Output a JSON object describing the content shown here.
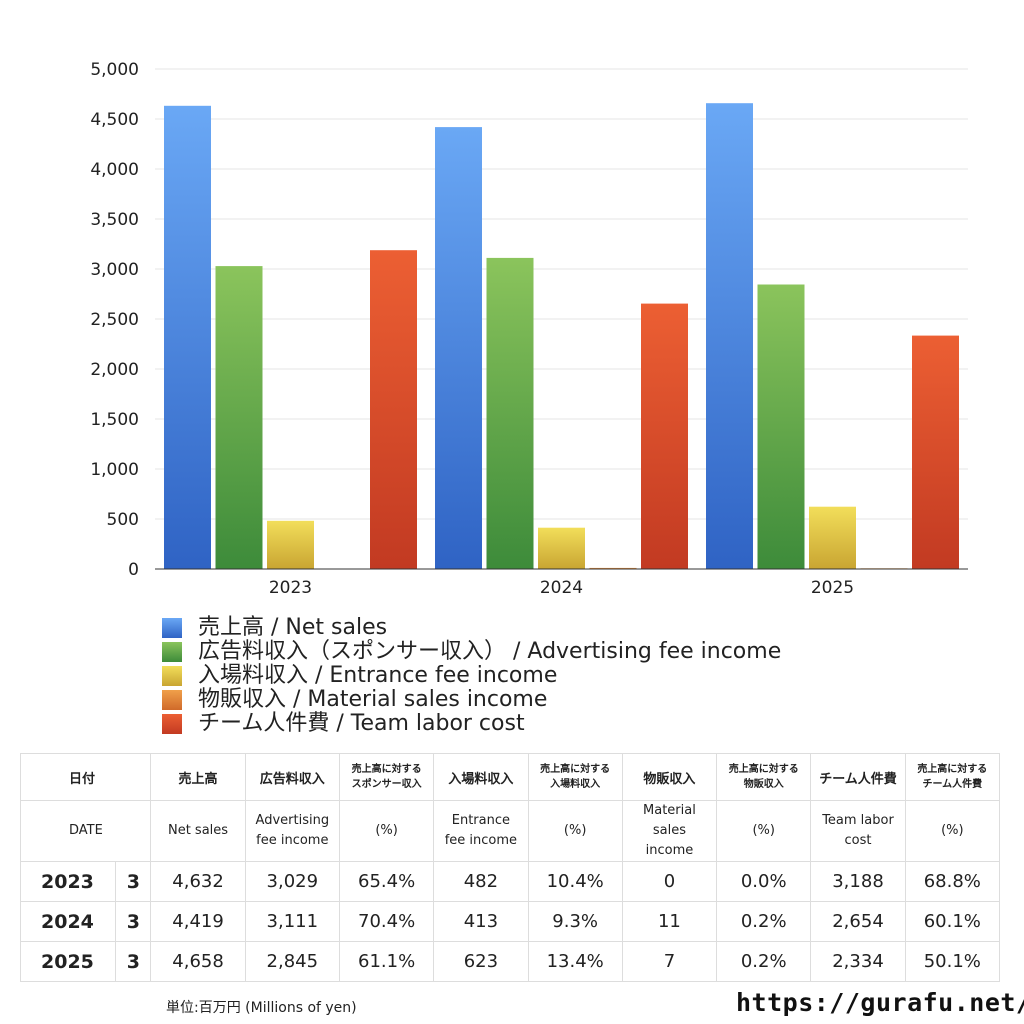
{
  "chart_data": {
    "type": "bar",
    "categories": [
      "2023",
      "2024",
      "2025"
    ],
    "ylim": [
      0,
      5000
    ],
    "yticks": [
      0,
      500,
      1000,
      1500,
      2000,
      2500,
      3000,
      3500,
      4000,
      4500,
      5000
    ],
    "ytick_labels": [
      "0",
      "500",
      "1,000",
      "1,500",
      "2,000",
      "2,500",
      "3,000",
      "3,500",
      "4,000",
      "4,500",
      "5,000"
    ],
    "grid": true,
    "legend_position": "bottom-left",
    "series": [
      {
        "name": "売上高 / Net sales",
        "values": [
          4632,
          4419,
          4658
        ],
        "color_top": "#6aa8f5",
        "color_bottom": "#2f63c4"
      },
      {
        "name": "広告料収入（スポンサー収入） / Advertising fee income",
        "values": [
          3029,
          3111,
          2845
        ],
        "color_top": "#8bc45c",
        "color_bottom": "#3d8b3a"
      },
      {
        "name": "入場料収入 / Entrance fee income",
        "values": [
          482,
          413,
          623
        ],
        "color_top": "#f2de5a",
        "color_bottom": "#c9a532"
      },
      {
        "name": "物販収入 / Material sales income",
        "values": [
          0,
          11,
          7
        ],
        "color_top": "#f0a04a",
        "color_bottom": "#d06a2a"
      },
      {
        "name": "チーム人件費 / Team labor cost",
        "values": [
          3188,
          2654,
          2334
        ],
        "color_top": "#ec5f33",
        "color_bottom": "#c23a22"
      }
    ]
  },
  "table": {
    "header_jp": {
      "date": "日付",
      "net_sales": "売上高",
      "adv": "広告料収入",
      "adv_ratio": [
        "売上高に対する",
        "スポンサー収入"
      ],
      "entrance": "入場料収入",
      "entrance_ratio": [
        "売上高に対する",
        "入場料収入"
      ],
      "material": "物販収入",
      "material_ratio": [
        "売上高に対する",
        "物販収入"
      ],
      "labor": "チーム人件費",
      "labor_ratio": [
        "売上高に対する",
        "チーム人件費"
      ]
    },
    "header_en": {
      "date": "DATE",
      "net_sales": "Net sales",
      "adv": [
        "Advertising",
        "fee income"
      ],
      "pct": "(%)",
      "entrance": [
        "Entrance",
        "fee income"
      ],
      "material": [
        "Material",
        "sales",
        "income"
      ],
      "labor": [
        "Team labor",
        "cost"
      ]
    },
    "rows": [
      {
        "year": "2023",
        "month": "3",
        "net_sales": "4,632",
        "adv": "3,029",
        "adv_pct": "65.4%",
        "entrance": "482",
        "entrance_pct": "10.4%",
        "material": "0",
        "material_pct": "0.0%",
        "labor": "3,188",
        "labor_pct": "68.8%"
      },
      {
        "year": "2024",
        "month": "3",
        "net_sales": "4,419",
        "adv": "3,111",
        "adv_pct": "70.4%",
        "entrance": "413",
        "entrance_pct": "9.3%",
        "material": "11",
        "material_pct": "0.2%",
        "labor": "2,654",
        "labor_pct": "60.1%"
      },
      {
        "year": "2025",
        "month": "3",
        "net_sales": "4,658",
        "adv": "2,845",
        "adv_pct": "61.1%",
        "entrance": "623",
        "entrance_pct": "13.4%",
        "material": "7",
        "material_pct": "0.2%",
        "labor": "2,334",
        "labor_pct": "50.1%"
      }
    ]
  },
  "footer": {
    "unit": "単位:百万円 (Millions of yen)",
    "site": "https://gurafu.net/"
  }
}
